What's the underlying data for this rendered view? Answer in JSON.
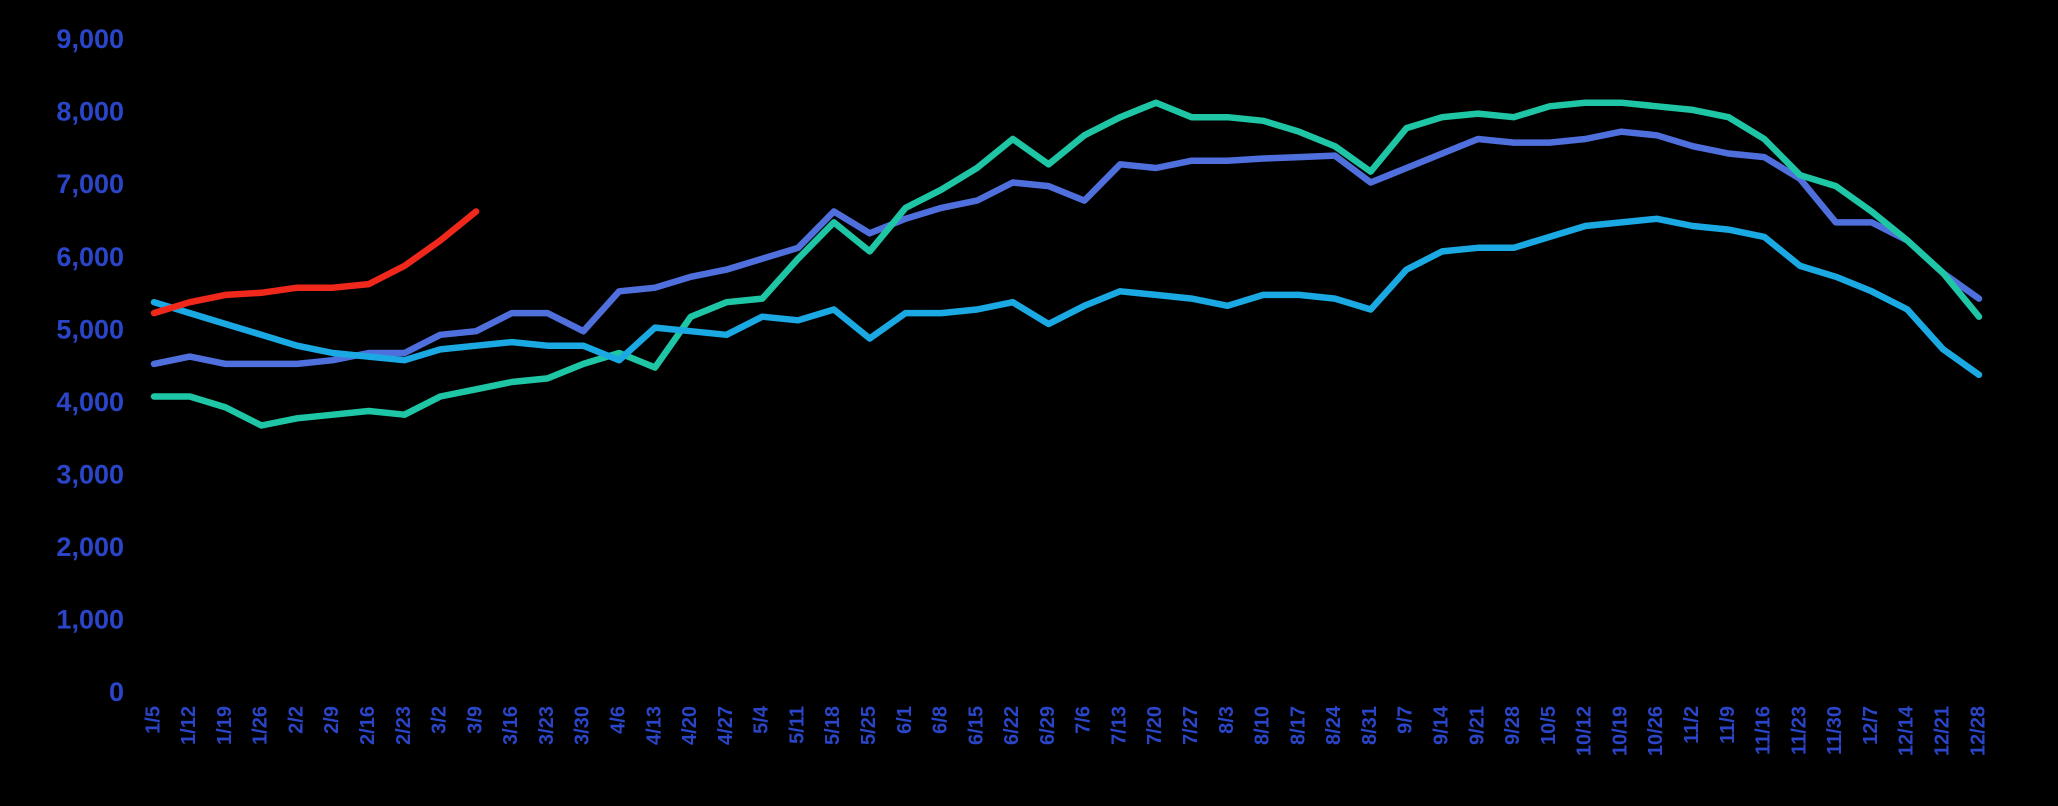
{
  "chart_data": {
    "type": "line",
    "categories": [
      "1/5",
      "1/12",
      "1/19",
      "1/26",
      "2/2",
      "2/9",
      "2/16",
      "2/23",
      "3/2",
      "3/9",
      "3/16",
      "3/23",
      "3/30",
      "4/6",
      "4/13",
      "4/20",
      "4/27",
      "5/4",
      "5/11",
      "5/18",
      "5/25",
      "6/1",
      "6/8",
      "6/15",
      "6/22",
      "6/29",
      "7/6",
      "7/13",
      "7/20",
      "7/27",
      "8/3",
      "8/10",
      "8/17",
      "8/24",
      "8/31",
      "9/7",
      "9/14",
      "9/21",
      "9/28",
      "10/5",
      "10/12",
      "10/19",
      "10/26",
      "11/2",
      "11/9",
      "11/16",
      "11/23",
      "11/30",
      "12/7",
      "12/14",
      "12/21",
      "12/28"
    ],
    "series": [
      {
        "color": "#4f6fdc",
        "values": [
          4550,
          4650,
          4550,
          4550,
          4550,
          4600,
          4700,
          4700,
          4950,
          5000,
          5250,
          5250,
          5000,
          5550,
          5600,
          5750,
          5850,
          6000,
          6150,
          6650,
          6350,
          6550,
          6700,
          6800,
          7050,
          7000,
          6800,
          7300,
          7250,
          7350,
          7350,
          7380,
          7400,
          7420,
          7050,
          7250,
          7450,
          7650,
          7600,
          7600,
          7650,
          7750,
          7700,
          7550,
          7450,
          7400,
          7100,
          6500,
          6500,
          6250,
          5800,
          5450
        ]
      },
      {
        "color": "#1fc6a6",
        "values": [
          4100,
          4100,
          3950,
          3700,
          3800,
          3850,
          3900,
          3850,
          4100,
          4200,
          4300,
          4350,
          4550,
          4700,
          4500,
          5200,
          5400,
          5450,
          6000,
          6500,
          6100,
          6700,
          6950,
          7250,
          7650,
          7300,
          7700,
          7950,
          8150,
          7950,
          7950,
          7900,
          7750,
          7550,
          7200,
          7800,
          7950,
          8000,
          7950,
          8100,
          8150,
          8150,
          8100,
          8050,
          7950,
          7650,
          7150,
          7000,
          6650,
          6250,
          5800,
          5200
        ]
      },
      {
        "color": "#1aa9e2",
        "values": [
          5400,
          5250,
          5100,
          4950,
          4800,
          4700,
          4650,
          4600,
          4750,
          4800,
          4850,
          4800,
          4800,
          4600,
          5050,
          5000,
          4950,
          5200,
          5150,
          5300,
          4900,
          5250,
          5250,
          5300,
          5400,
          5100,
          5350,
          5550,
          5500,
          5450,
          5350,
          5500,
          5500,
          5450,
          5300,
          5850,
          6100,
          6150,
          6150,
          6300,
          6450,
          6500,
          6550,
          6450,
          6400,
          6300,
          5900,
          5750,
          5550,
          5300,
          4750,
          4400
        ]
      },
      {
        "color": "#f0281c",
        "values": [
          5250,
          5400,
          5500,
          5530,
          5600,
          5600,
          5650,
          5900,
          6250,
          6650,
          null,
          null,
          null,
          null,
          null,
          null,
          null,
          null,
          null,
          null,
          null,
          null,
          null,
          null,
          null,
          null,
          null,
          null,
          null,
          null,
          null,
          null,
          null,
          null,
          null,
          null,
          null,
          null,
          null,
          null,
          null,
          null,
          null,
          null,
          null,
          null,
          null,
          null,
          null,
          null,
          null,
          null
        ]
      }
    ],
    "ylim": [
      0,
      9000
    ],
    "yticks": [
      0,
      {
        "value": 1000,
        "label": "1,000"
      },
      {
        "value": 2000,
        "label": "2,000"
      },
      {
        "value": 3000,
        "label": "3,000"
      },
      {
        "value": 4000,
        "label": "4,000"
      },
      {
        "value": 5000,
        "label": "5,000"
      },
      {
        "value": 6000,
        "label": "6,000"
      },
      {
        "value": 7000,
        "label": "7,000"
      },
      {
        "value": 8000,
        "label": "8,000"
      },
      {
        "value": 9000,
        "label": "9,000"
      }
    ],
    "grid": false
  }
}
